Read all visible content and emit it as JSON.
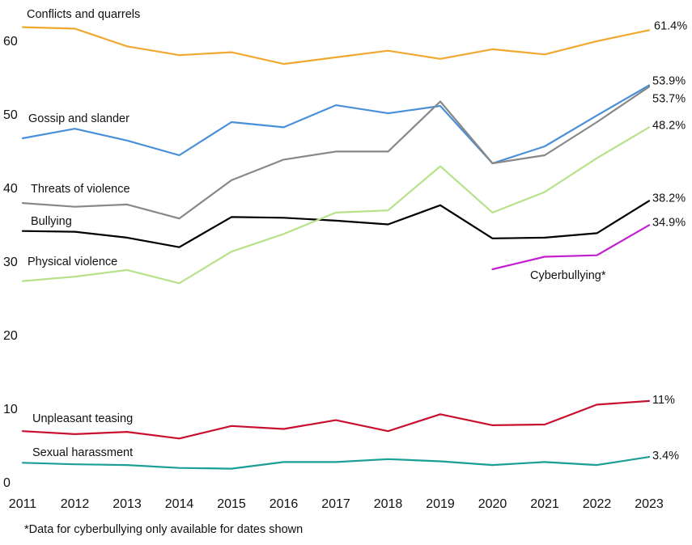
{
  "chart_data": {
    "type": "line",
    "title": "",
    "xlabel": "",
    "ylabel": "",
    "x": [
      2011,
      2012,
      2013,
      2014,
      2015,
      2016,
      2017,
      2018,
      2019,
      2020,
      2021,
      2022,
      2023
    ],
    "xticks": [
      "2011",
      "2012",
      "2013",
      "2014",
      "2015",
      "2016",
      "2017",
      "2018",
      "2019",
      "2020",
      "2021",
      "2022",
      "2023"
    ],
    "yticks": [
      "0",
      "10",
      "20",
      "30",
      "40",
      "50",
      "60"
    ],
    "ylim": [
      0,
      65
    ],
    "grid": false,
    "series": [
      {
        "name": "Conflicts and quarrels",
        "color": "#f0a830",
        "end_label": "61.4%",
        "values": [
          61.8,
          61.6,
          59.2,
          58.0,
          58.4,
          56.8,
          57.7,
          58.6,
          57.5,
          58.8,
          58.1,
          59.9,
          61.4
        ]
      },
      {
        "name": "Gossip and slander",
        "color": "#4a90d9",
        "end_label": "53.9%",
        "values": [
          46.7,
          48.0,
          46.4,
          44.4,
          48.9,
          48.2,
          51.2,
          50.1,
          51.1,
          43.3,
          45.6,
          49.8,
          53.9
        ]
      },
      {
        "name": "Threats of violence",
        "color": "#888888",
        "end_label": "53.7%",
        "values": [
          37.9,
          37.4,
          37.7,
          35.8,
          41.0,
          43.8,
          44.9,
          44.9,
          51.7,
          43.3,
          44.4,
          48.9,
          53.7
        ]
      },
      {
        "name": "Bullying",
        "color": "#000000",
        "end_label": "38.2%",
        "values": [
          34.1,
          34.0,
          33.2,
          31.9,
          36.0,
          35.9,
          35.5,
          35.0,
          37.6,
          33.1,
          33.2,
          33.8,
          38.2
        ]
      },
      {
        "name": "Physical violence",
        "color": "#b7e28a",
        "end_label": "48.2%",
        "values": [
          27.3,
          27.9,
          28.8,
          27.0,
          31.3,
          33.7,
          36.6,
          36.9,
          42.9,
          36.6,
          39.4,
          44.0,
          48.2
        ]
      },
      {
        "name": "Cyberbullying*",
        "color": "#c020d0",
        "end_label": "34.9%",
        "values": [
          null,
          null,
          null,
          null,
          null,
          null,
          null,
          null,
          null,
          28.9,
          30.6,
          30.8,
          34.9
        ]
      },
      {
        "name": "Unpleasant teasing",
        "color": "#c8102e",
        "end_label": "11%",
        "values": [
          6.9,
          6.5,
          6.8,
          5.9,
          7.6,
          7.2,
          8.4,
          6.9,
          9.2,
          7.7,
          7.8,
          10.5,
          11.0
        ]
      },
      {
        "name": "Sexual harassment",
        "color": "#1a9e96",
        "end_label": "3.4%",
        "values": [
          2.6,
          2.4,
          2.3,
          1.9,
          1.8,
          2.7,
          2.7,
          3.1,
          2.8,
          2.3,
          2.7,
          2.3,
          3.4
        ]
      }
    ],
    "footnote": "*Data for cyberbullying only available for dates shown"
  }
}
